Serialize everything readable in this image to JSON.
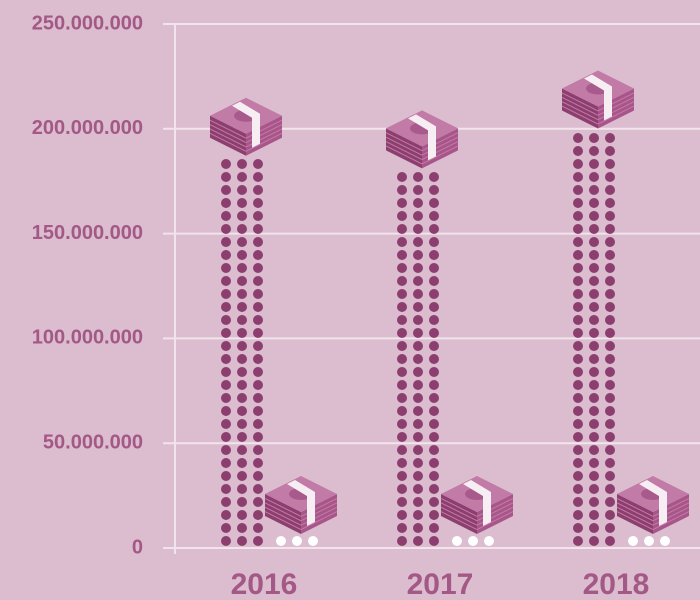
{
  "chart_data": {
    "type": "pictogram",
    "categories": [
      "2016",
      "2017",
      "2018"
    ],
    "series": [
      {
        "color": "#8c3f6e",
        "values": [
          190000000,
          184000000,
          203000000
        ]
      },
      {
        "color": "#ffffff",
        "values": [
          3000000,
          3000000,
          3000000
        ]
      }
    ],
    "ylim": [
      0,
      250000000
    ],
    "yticks": [
      0,
      {
        "value": 50000000,
        "label": "50.000.000"
      },
      {
        "value": 100000000,
        "label": "100.000.000"
      },
      {
        "value": 150000000,
        "label": "150.000.000"
      },
      {
        "value": 200000000,
        "label": "200.000.000"
      },
      {
        "value": 250000000,
        "label": "250.000.000"
      }
    ],
    "grid": true
  }
}
